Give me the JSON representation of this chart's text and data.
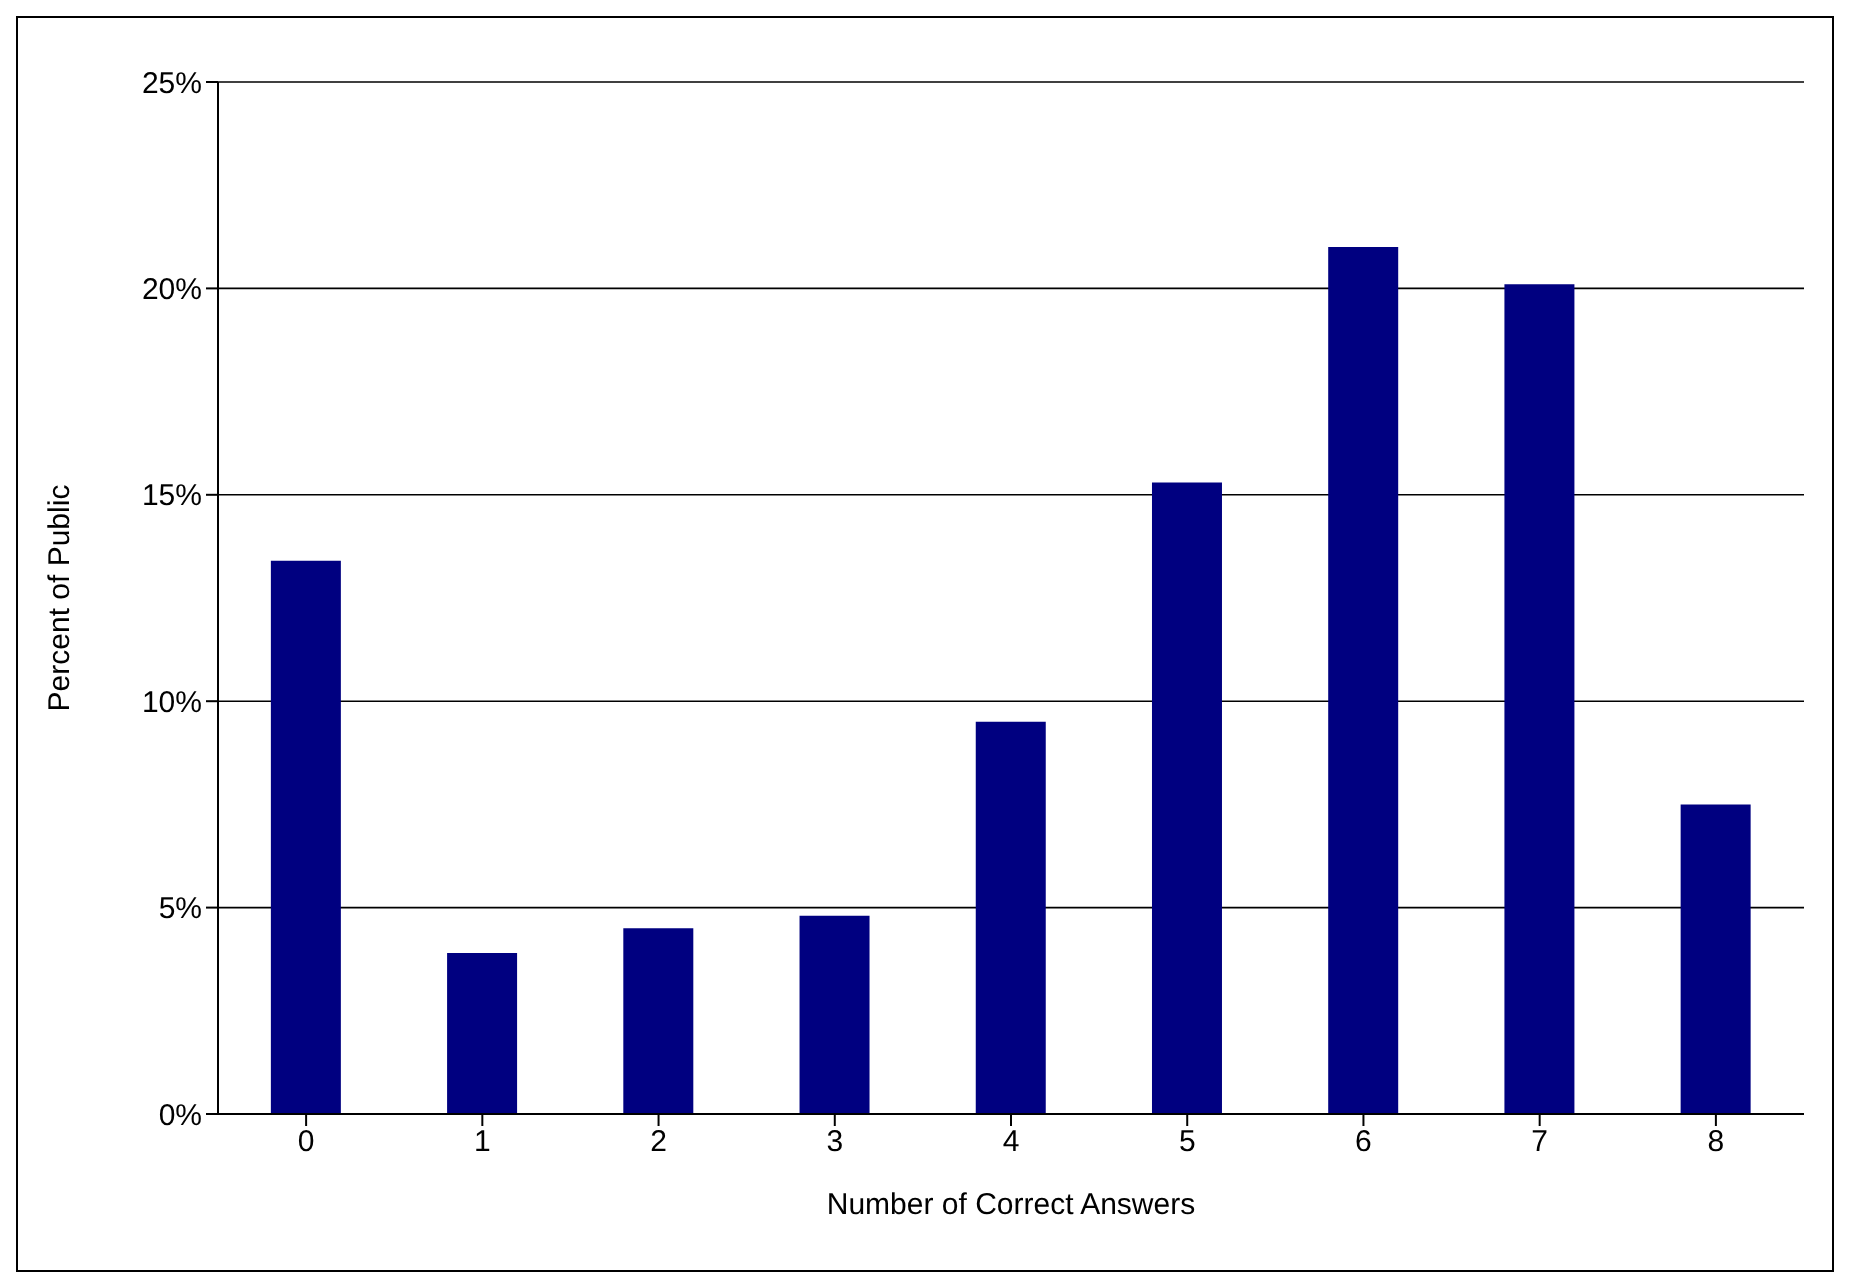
{
  "chart_data": {
    "type": "bar",
    "xlabel": "Number of Correct Answers",
    "ylabel": "Percent of Public",
    "categories": [
      "0",
      "1",
      "2",
      "3",
      "4",
      "5",
      "6",
      "7",
      "8"
    ],
    "values": [
      13.4,
      3.9,
      4.5,
      4.8,
      9.5,
      15.3,
      21.0,
      20.1,
      7.5
    ],
    "color": "#000080",
    "ylim": [
      0,
      25
    ],
    "yticks": [
      {
        "value": 0,
        "label": "0%"
      },
      {
        "value": 5,
        "label": "5%"
      },
      {
        "value": 10,
        "label": "10%"
      },
      {
        "value": 15,
        "label": "15%"
      },
      {
        "value": 20,
        "label": "20%"
      },
      {
        "value": 25,
        "label": "25%"
      }
    ],
    "grid": "y",
    "legend": false
  }
}
